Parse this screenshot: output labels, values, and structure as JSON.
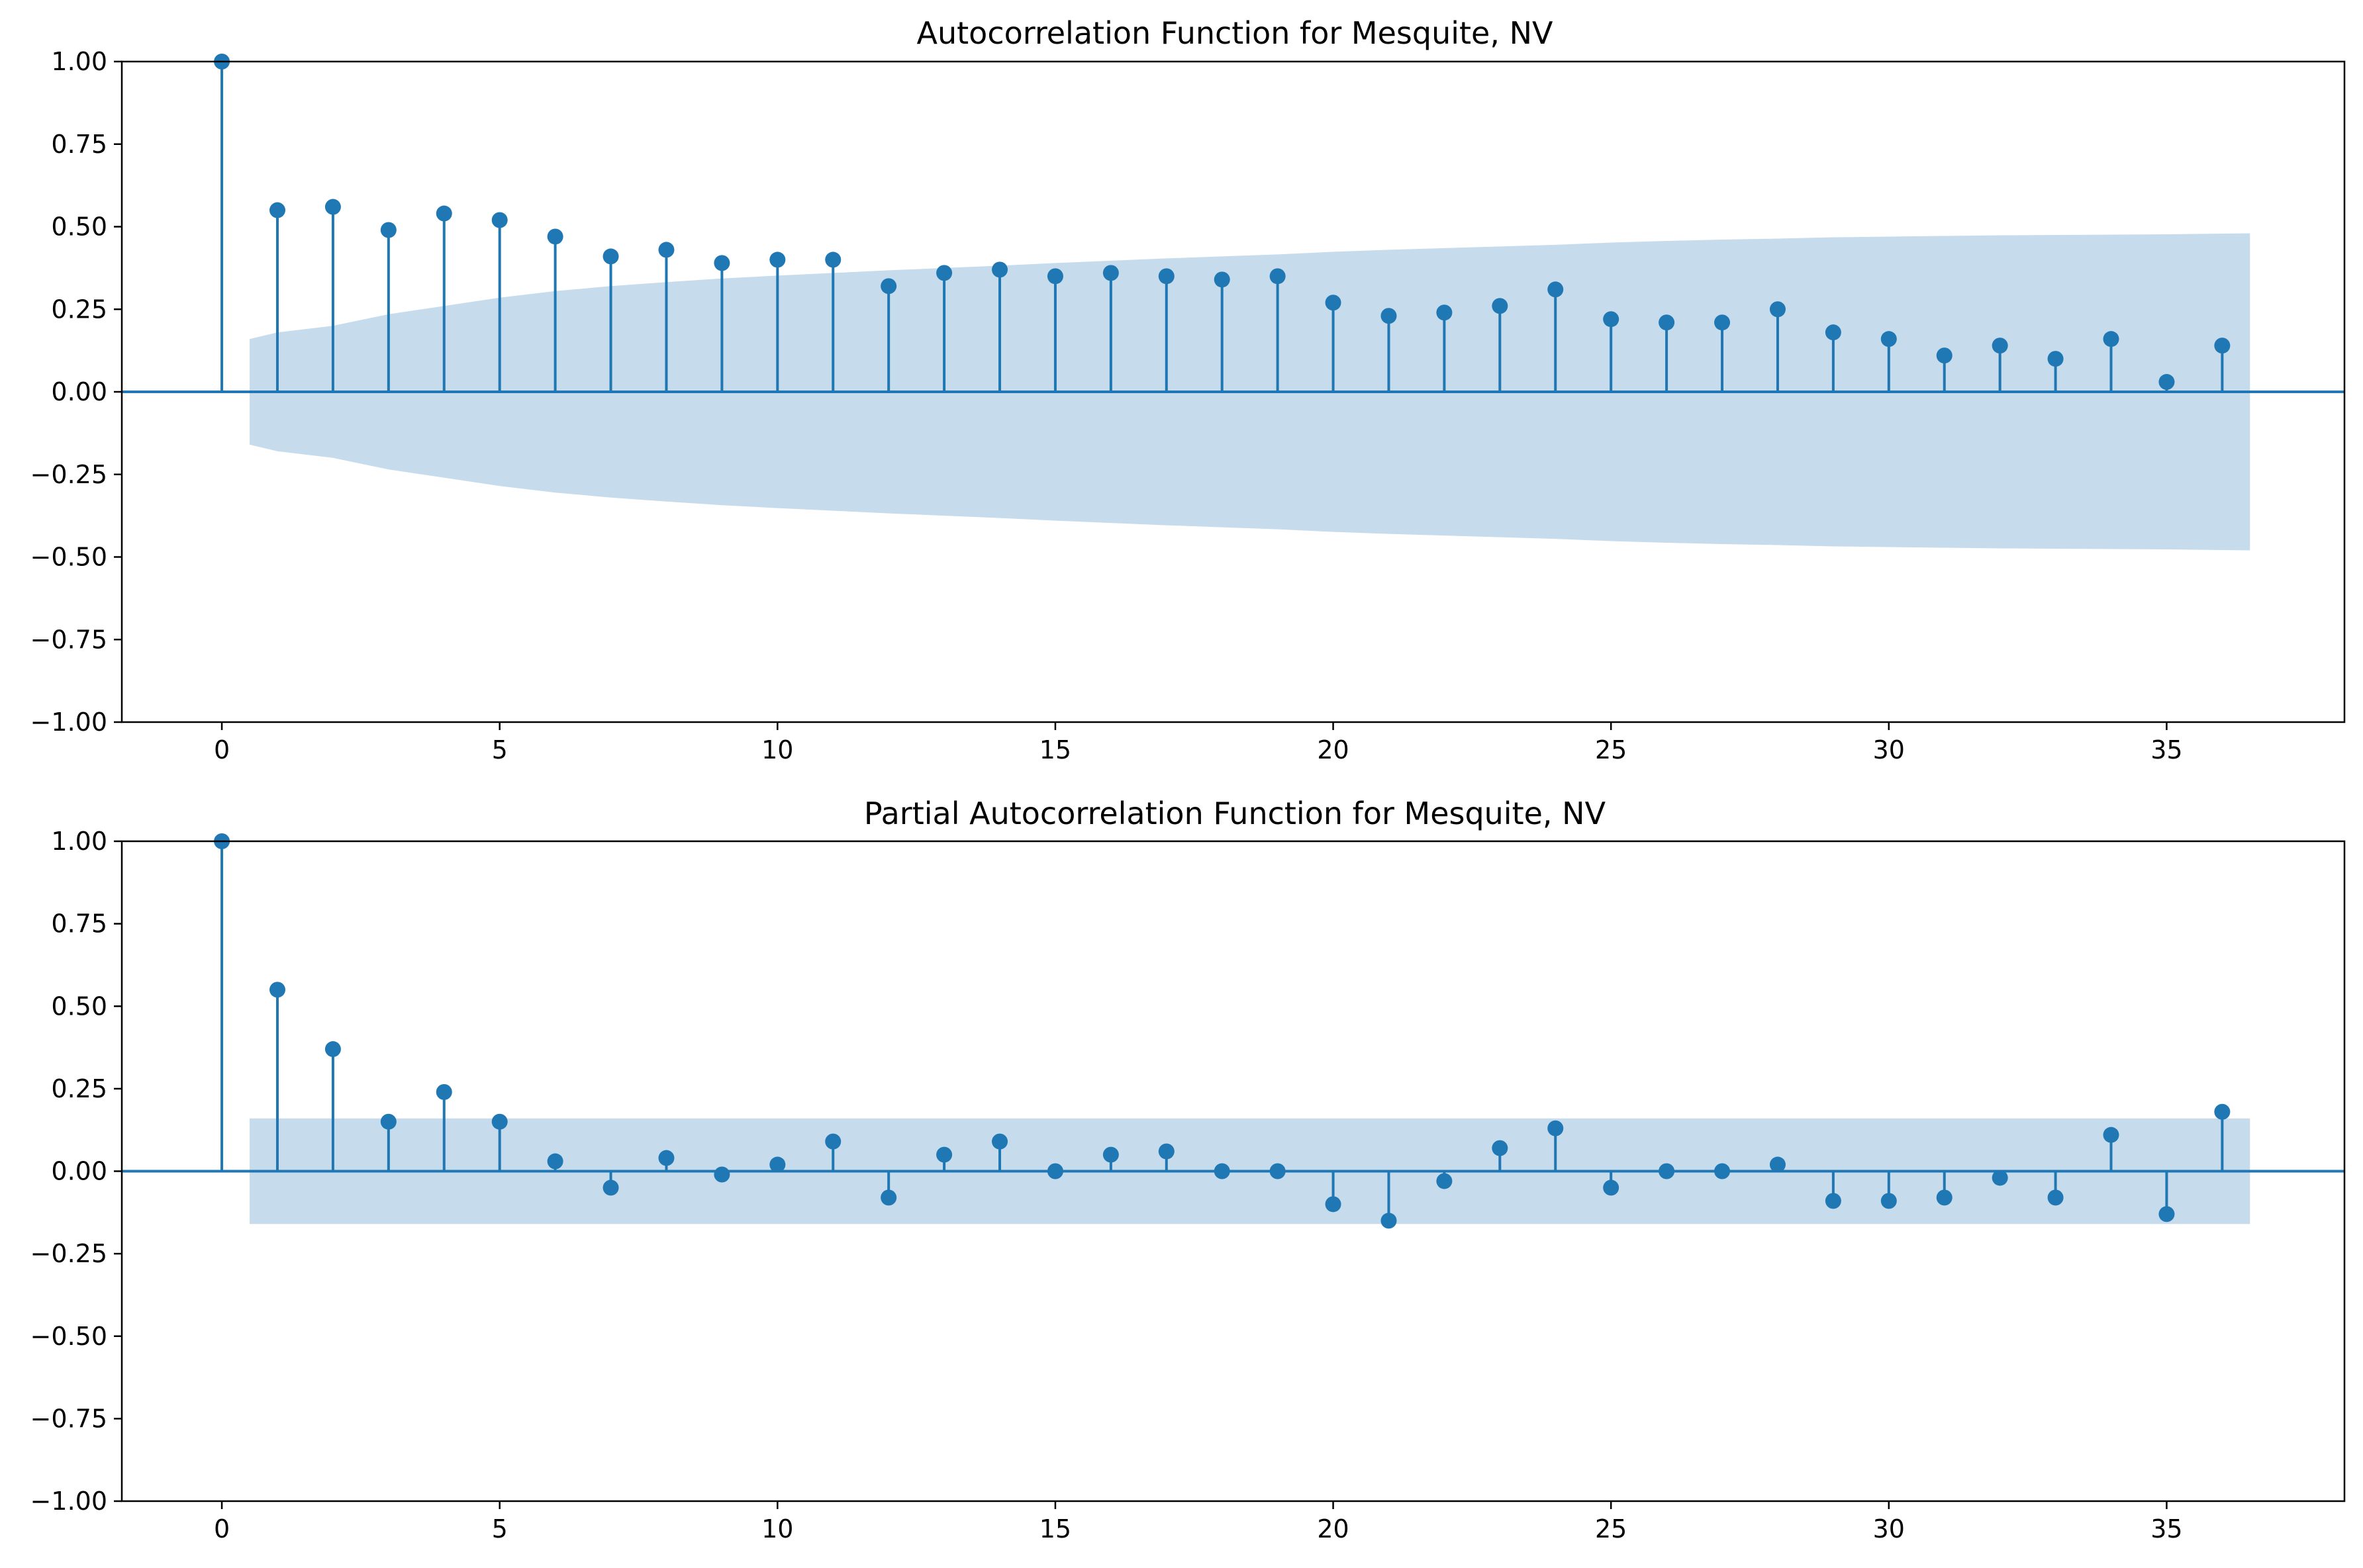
{
  "chart_data": [
    {
      "type": "stem",
      "title": "Autocorrelation Function for Mesquite, NV",
      "xlabel": "",
      "ylabel": "",
      "xlim": [
        -1.8,
        38.2
      ],
      "ylim": [
        -1.0,
        1.0
      ],
      "x_ticks": [
        0,
        5,
        10,
        15,
        20,
        25,
        30,
        35
      ],
      "y_ticks": [
        -1.0,
        -0.75,
        -0.5,
        -0.25,
        0.0,
        0.25,
        0.5,
        0.75,
        1.0
      ],
      "x_tick_labels": [
        "0",
        "5",
        "10",
        "15",
        "20",
        "25",
        "30",
        "35"
      ],
      "y_tick_labels": [
        "−1.00",
        "−0.75",
        "−0.50",
        "−0.25",
        "0.00",
        "0.25",
        "0.50",
        "0.75",
        "1.00"
      ],
      "grid": false,
      "lags": [
        0,
        1,
        2,
        3,
        4,
        5,
        6,
        7,
        8,
        9,
        10,
        11,
        12,
        13,
        14,
        15,
        16,
        17,
        18,
        19,
        20,
        21,
        22,
        23,
        24,
        25,
        26,
        27,
        28,
        29,
        30,
        31,
        32,
        33,
        34,
        35,
        36
      ],
      "values": [
        1.0,
        0.55,
        0.56,
        0.49,
        0.54,
        0.52,
        0.47,
        0.41,
        0.43,
        0.39,
        0.4,
        0.4,
        0.32,
        0.36,
        0.37,
        0.35,
        0.36,
        0.35,
        0.34,
        0.35,
        0.27,
        0.23,
        0.24,
        0.26,
        0.31,
        0.22,
        0.21,
        0.21,
        0.25,
        0.18,
        0.16,
        0.11,
        0.14,
        0.1,
        0.16,
        0.03,
        0.14
      ],
      "confidence_band": {
        "x": [
          0.5,
          1,
          2,
          3,
          4,
          5,
          6,
          7,
          8,
          9,
          10,
          11,
          12,
          13,
          14,
          15,
          16,
          17,
          18,
          19,
          20,
          21,
          22,
          23,
          24,
          25,
          26,
          27,
          28,
          29,
          30,
          31,
          32,
          33,
          34,
          35,
          36.5
        ],
        "upper": [
          0.16,
          0.18,
          0.2,
          0.235,
          0.26,
          0.285,
          0.305,
          0.32,
          0.332,
          0.343,
          0.352,
          0.36,
          0.368,
          0.375,
          0.382,
          0.39,
          0.397,
          0.404,
          0.41,
          0.416,
          0.424,
          0.43,
          0.435,
          0.44,
          0.445,
          0.452,
          0.457,
          0.461,
          0.464,
          0.468,
          0.47,
          0.472,
          0.474,
          0.475,
          0.476,
          0.477,
          0.48
        ]
      },
      "colors": {
        "stem": "#1f77b4",
        "band": "#c6dbec",
        "axis": "#000000"
      }
    },
    {
      "type": "stem",
      "title": "Partial Autocorrelation Function for Mesquite, NV",
      "xlabel": "",
      "ylabel": "",
      "xlim": [
        -1.8,
        38.2
      ],
      "ylim": [
        -1.0,
        1.0
      ],
      "x_ticks": [
        0,
        5,
        10,
        15,
        20,
        25,
        30,
        35
      ],
      "y_ticks": [
        -1.0,
        -0.75,
        -0.5,
        -0.25,
        0.0,
        0.25,
        0.5,
        0.75,
        1.0
      ],
      "x_tick_labels": [
        "0",
        "5",
        "10",
        "15",
        "20",
        "25",
        "30",
        "35"
      ],
      "y_tick_labels": [
        "−1.00",
        "−0.75",
        "−0.50",
        "−0.25",
        "0.00",
        "0.25",
        "0.50",
        "0.75",
        "1.00"
      ],
      "grid": false,
      "lags": [
        0,
        1,
        2,
        3,
        4,
        5,
        6,
        7,
        8,
        9,
        10,
        11,
        12,
        13,
        14,
        15,
        16,
        17,
        18,
        19,
        20,
        21,
        22,
        23,
        24,
        25,
        26,
        27,
        28,
        29,
        30,
        31,
        32,
        33,
        34,
        35,
        36
      ],
      "values": [
        1.0,
        0.55,
        0.37,
        0.15,
        0.24,
        0.15,
        0.03,
        -0.05,
        0.04,
        -0.01,
        0.02,
        0.09,
        -0.08,
        0.05,
        0.09,
        0.0,
        0.05,
        0.06,
        0.0,
        0.0,
        -0.1,
        -0.15,
        -0.03,
        0.07,
        0.13,
        -0.05,
        0.0,
        0.0,
        0.02,
        -0.09,
        -0.09,
        -0.08,
        -0.02,
        -0.08,
        0.11,
        -0.13,
        0.18
      ],
      "confidence_band": {
        "x": [
          0.5,
          36.5
        ],
        "upper": [
          0.16,
          0.16
        ]
      },
      "colors": {
        "stem": "#1f77b4",
        "band": "#c6dbec",
        "axis": "#000000"
      }
    }
  ]
}
